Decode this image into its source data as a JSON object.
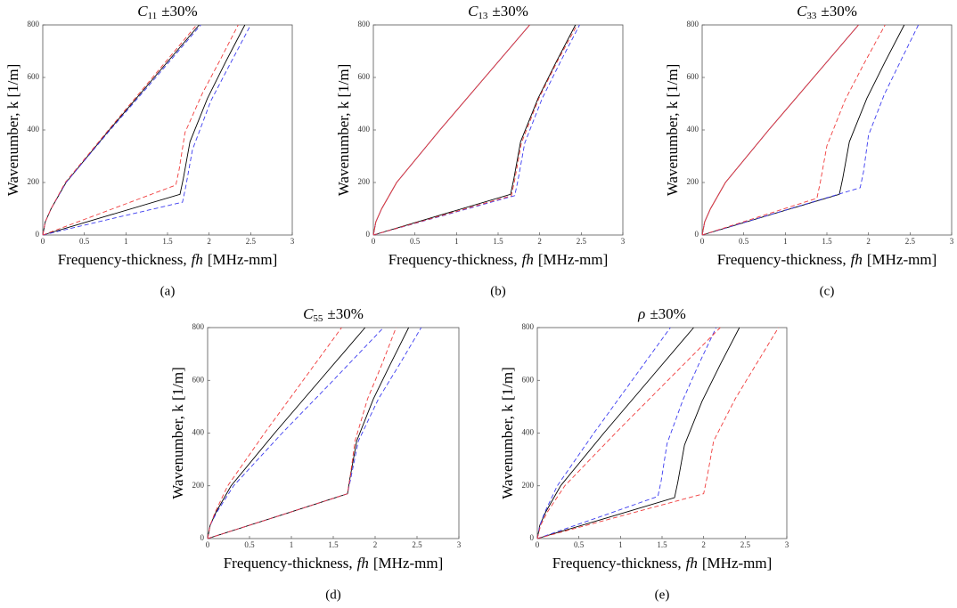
{
  "chart_data": [
    {
      "type": "line",
      "caption": "(a)",
      "title_symbol": "C",
      "title_subscript": "11",
      "title_suffix": "±30%",
      "xlabel": [
        "Frequency-thickness,",
        "fh",
        "[MHz-mm]"
      ],
      "ylabel": "Wavenumber, k [1/m]",
      "xlim": [
        0,
        3
      ],
      "ylim": [
        0,
        800
      ],
      "xticks": [
        0,
        0.5,
        1,
        1.5,
        2,
        2.5,
        3
      ],
      "yticks": [
        0,
        200,
        400,
        600,
        800
      ],
      "series": [
        {
          "color": "#000000",
          "dash": false,
          "x": [
            0,
            0.03,
            0.1,
            0.28,
            0.8,
            1.34,
            1.88
          ],
          "values": [
            0,
            50,
            100,
            200,
            400,
            600,
            800
          ]
        },
        {
          "color": "#000000",
          "dash": false,
          "x": [
            0,
            0.83,
            1.65,
            1.69,
            1.77,
            1.98,
            2.2,
            2.43
          ],
          "values": [
            0,
            78,
            155,
            215,
            355,
            520,
            660,
            800
          ]
        },
        {
          "color": "#3c3cf0",
          "dash": true,
          "x": [
            0,
            0.03,
            0.1,
            0.28,
            0.81,
            1.36,
            1.9
          ],
          "values": [
            0,
            50,
            100,
            200,
            400,
            600,
            800
          ]
        },
        {
          "color": "#3c3cf0",
          "dash": true,
          "x": [
            0,
            0.84,
            1.68,
            1.72,
            1.8,
            2.02,
            2.25,
            2.5
          ],
          "values": [
            0,
            63,
            125,
            185,
            325,
            510,
            650,
            800
          ]
        },
        {
          "color": "#f03c3c",
          "dash": true,
          "x": [
            0,
            0.03,
            0.1,
            0.27,
            0.79,
            1.32,
            1.85
          ],
          "values": [
            0,
            50,
            100,
            200,
            400,
            600,
            800
          ]
        },
        {
          "color": "#f03c3c",
          "dash": true,
          "x": [
            0,
            0.8,
            1.6,
            1.64,
            1.71,
            1.92,
            2.13,
            2.35
          ],
          "values": [
            0,
            95,
            190,
            250,
            390,
            540,
            665,
            800
          ]
        }
      ]
    },
    {
      "type": "line",
      "caption": "(b)",
      "title_symbol": "C",
      "title_subscript": "13",
      "title_suffix": "±30%",
      "xlabel": [
        "Frequency-thickness,",
        "fh",
        "[MHz-mm]"
      ],
      "ylabel": "Wavenumber, k [1/m]",
      "xlim": [
        0,
        3
      ],
      "ylim": [
        0,
        800
      ],
      "xticks": [
        0,
        0.5,
        1,
        1.5,
        2,
        2.5,
        3
      ],
      "yticks": [
        0,
        200,
        400,
        600,
        800
      ],
      "series": [
        {
          "color": "#000000",
          "dash": false,
          "x": [
            0,
            0.03,
            0.1,
            0.28,
            0.8,
            1.34,
            1.88
          ],
          "values": [
            0,
            50,
            100,
            200,
            400,
            600,
            800
          ]
        },
        {
          "color": "#000000",
          "dash": false,
          "x": [
            0,
            0.83,
            1.65,
            1.69,
            1.77,
            1.98,
            2.2,
            2.43
          ],
          "values": [
            0,
            78,
            155,
            215,
            355,
            520,
            660,
            800
          ]
        },
        {
          "color": "#3c3cf0",
          "dash": true,
          "x": [
            0,
            0.03,
            0.1,
            0.28,
            0.8,
            1.34,
            1.88
          ],
          "values": [
            0,
            50,
            100,
            200,
            400,
            600,
            800
          ]
        },
        {
          "color": "#3c3cf0",
          "dash": true,
          "x": [
            0,
            0.85,
            1.7,
            1.74,
            1.82,
            2.03,
            2.25,
            2.48
          ],
          "values": [
            0,
            75,
            150,
            210,
            350,
            520,
            660,
            800
          ]
        },
        {
          "color": "#f03c3c",
          "dash": false,
          "x": [
            0,
            0.03,
            0.1,
            0.28,
            0.8,
            1.34,
            1.88
          ],
          "values": [
            0,
            50,
            100,
            200,
            400,
            600,
            800
          ]
        },
        {
          "color": "#f03c3c",
          "dash": true,
          "x": [
            0,
            0.83,
            1.66,
            1.7,
            1.78,
            1.99,
            2.21,
            2.45
          ],
          "values": [
            0,
            75,
            150,
            210,
            350,
            520,
            660,
            800
          ]
        }
      ]
    },
    {
      "type": "line",
      "caption": "(c)",
      "title_symbol": "C",
      "title_subscript": "33",
      "title_suffix": "±30%",
      "xlabel": [
        "Frequency-thickness,",
        "fh",
        "[MHz-mm]"
      ],
      "ylabel": "Wavenumber, k [1/m]",
      "xlim": [
        0,
        3
      ],
      "ylim": [
        0,
        800
      ],
      "xticks": [
        0,
        0.5,
        1,
        1.5,
        2,
        2.5,
        3
      ],
      "yticks": [
        0,
        200,
        400,
        600,
        800
      ],
      "series": [
        {
          "color": "#000000",
          "dash": false,
          "x": [
            0,
            0.03,
            0.1,
            0.28,
            0.8,
            1.34,
            1.88
          ],
          "values": [
            0,
            50,
            100,
            200,
            400,
            600,
            800
          ]
        },
        {
          "color": "#000000",
          "dash": false,
          "x": [
            0,
            0.83,
            1.65,
            1.69,
            1.77,
            1.98,
            2.2,
            2.43
          ],
          "values": [
            0,
            78,
            155,
            215,
            355,
            520,
            660,
            800
          ]
        },
        {
          "color": "#3c3cf0",
          "dash": true,
          "x": [
            0,
            0.03,
            0.1,
            0.28,
            0.8,
            1.34,
            1.88
          ],
          "values": [
            0,
            50,
            100,
            200,
            400,
            600,
            800
          ]
        },
        {
          "color": "#3c3cf0",
          "dash": true,
          "x": [
            0,
            0.95,
            1.9,
            1.94,
            2.0,
            2.19,
            2.39,
            2.6
          ],
          "values": [
            0,
            90,
            180,
            240,
            380,
            535,
            665,
            800
          ]
        },
        {
          "color": "#f03c3c",
          "dash": false,
          "x": [
            0,
            0.03,
            0.1,
            0.28,
            0.8,
            1.34,
            1.88
          ],
          "values": [
            0,
            50,
            100,
            200,
            400,
            600,
            800
          ]
        },
        {
          "color": "#f03c3c",
          "dash": true,
          "x": [
            0,
            0.69,
            1.38,
            1.42,
            1.5,
            1.72,
            1.95,
            2.2
          ],
          "values": [
            0,
            70,
            140,
            200,
            340,
            515,
            655,
            800
          ]
        }
      ]
    },
    {
      "type": "line",
      "caption": "(d)",
      "title_symbol": "C",
      "title_subscript": "55",
      "title_suffix": "±30%",
      "xlabel": [
        "Frequency-thickness,",
        "fh",
        "[MHz-mm]"
      ],
      "ylabel": "Wavenumber, k [1/m]",
      "xlim": [
        0,
        3
      ],
      "ylim": [
        0,
        800
      ],
      "xticks": [
        0,
        0.5,
        1,
        1.5,
        2,
        2.5,
        3
      ],
      "yticks": [
        0,
        200,
        400,
        600,
        800
      ],
      "series": [
        {
          "color": "#000000",
          "dash": false,
          "x": [
            0,
            0.03,
            0.1,
            0.28,
            0.8,
            1.34,
            1.88
          ],
          "values": [
            0,
            50,
            100,
            200,
            400,
            600,
            800
          ]
        },
        {
          "color": "#000000",
          "dash": false,
          "x": [
            0,
            0.84,
            1.67,
            1.7,
            1.78,
            1.98,
            2.18,
            2.4
          ],
          "values": [
            0,
            85,
            170,
            230,
            370,
            530,
            660,
            800
          ]
        },
        {
          "color": "#3c3cf0",
          "dash": true,
          "x": [
            0,
            0.03,
            0.11,
            0.31,
            0.89,
            1.5,
            2.1
          ],
          "values": [
            0,
            50,
            100,
            200,
            400,
            600,
            800
          ]
        },
        {
          "color": "#3c3cf0",
          "dash": true,
          "x": [
            0,
            0.84,
            1.67,
            1.71,
            1.8,
            2.04,
            2.29,
            2.55
          ],
          "values": [
            0,
            85,
            170,
            230,
            370,
            530,
            660,
            800
          ]
        },
        {
          "color": "#f03c3c",
          "dash": true,
          "x": [
            0,
            0.03,
            0.09,
            0.24,
            0.68,
            1.14,
            1.6
          ],
          "values": [
            0,
            50,
            100,
            200,
            400,
            600,
            800
          ]
        },
        {
          "color": "#f03c3c",
          "dash": true,
          "x": [
            0,
            0.84,
            1.67,
            1.7,
            1.76,
            1.91,
            2.08,
            2.25
          ],
          "values": [
            0,
            85,
            170,
            230,
            370,
            530,
            660,
            800
          ]
        }
      ]
    },
    {
      "type": "line",
      "caption": "(e)",
      "title_symbol": "ρ",
      "title_suffix": "±30%",
      "xlabel": [
        "Frequency-thickness,",
        "fh",
        "[MHz-mm]"
      ],
      "ylabel": "Wavenumber, k [1/m]",
      "xlim": [
        0,
        3
      ],
      "ylim": [
        0,
        800
      ],
      "xticks": [
        0,
        0.5,
        1,
        1.5,
        2,
        2.5,
        3
      ],
      "yticks": [
        0,
        200,
        400,
        600,
        800
      ],
      "series": [
        {
          "color": "#000000",
          "dash": false,
          "x": [
            0,
            0.03,
            0.1,
            0.28,
            0.8,
            1.34,
            1.88
          ],
          "values": [
            0,
            50,
            100,
            200,
            400,
            600,
            800
          ]
        },
        {
          "color": "#000000",
          "dash": false,
          "x": [
            0,
            0.83,
            1.65,
            1.69,
            1.77,
            1.98,
            2.2,
            2.43
          ],
          "values": [
            0,
            78,
            155,
            215,
            355,
            520,
            660,
            800
          ]
        },
        {
          "color": "#3c3cf0",
          "dash": true,
          "x": [
            0,
            0.03,
            0.09,
            0.24,
            0.68,
            1.14,
            1.6
          ],
          "values": [
            0,
            50,
            100,
            200,
            400,
            600,
            800
          ]
        },
        {
          "color": "#3c3cf0",
          "dash": true,
          "x": [
            0,
            0.73,
            1.45,
            1.49,
            1.56,
            1.75,
            1.94,
            2.15
          ],
          "values": [
            0,
            80,
            160,
            220,
            360,
            525,
            660,
            800
          ]
        },
        {
          "color": "#f03c3c",
          "dash": true,
          "x": [
            0,
            0.04,
            0.12,
            0.33,
            0.94,
            1.57,
            2.2
          ],
          "values": [
            0,
            50,
            100,
            200,
            400,
            600,
            800
          ]
        },
        {
          "color": "#f03c3c",
          "dash": true,
          "x": [
            0,
            1.0,
            2.0,
            2.04,
            2.12,
            2.38,
            2.63,
            2.9
          ],
          "values": [
            0,
            85,
            170,
            230,
            370,
            530,
            660,
            800
          ]
        }
      ]
    }
  ]
}
